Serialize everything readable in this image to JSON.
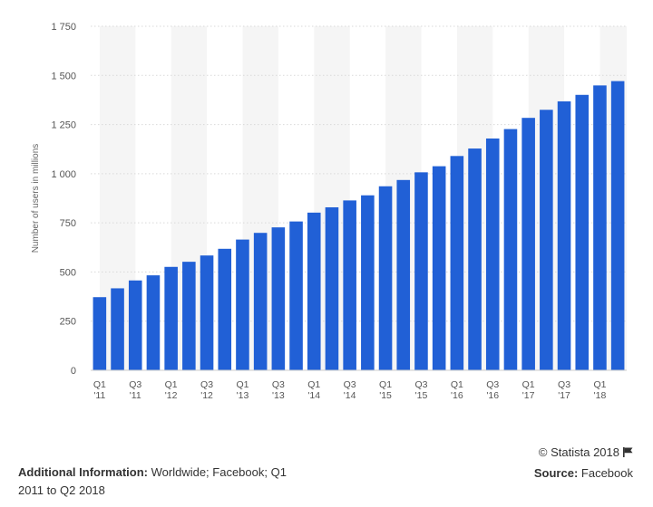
{
  "chart_data": {
    "type": "bar",
    "title": "",
    "xlabel": "",
    "ylabel": "Number of users in millions",
    "ylim": [
      0,
      1750
    ],
    "yticks": [
      0,
      250,
      500,
      750,
      1000,
      1250,
      1500,
      1750
    ],
    "ytick_labels": [
      "0",
      "250",
      "500",
      "750",
      "1 000",
      "1 250",
      "1 500",
      "1 750"
    ],
    "categories": [
      "Q1 '11",
      "Q2 '11",
      "Q3 '11",
      "Q4 '11",
      "Q1 '12",
      "Q2 '12",
      "Q3 '12",
      "Q4 '12",
      "Q1 '13",
      "Q2 '13",
      "Q3 '13",
      "Q4 '13",
      "Q1 '14",
      "Q2 '14",
      "Q3 '14",
      "Q4 '14",
      "Q1 '15",
      "Q2 '15",
      "Q3 '15",
      "Q4 '15",
      "Q1 '16",
      "Q2 '16",
      "Q3 '16",
      "Q4 '16",
      "Q1 '17",
      "Q2 '17",
      "Q3 '17",
      "Q4 '17",
      "Q1 '18",
      "Q2 '18"
    ],
    "values": [
      372,
      417,
      457,
      483,
      526,
      552,
      584,
      618,
      665,
      699,
      727,
      757,
      802,
      829,
      864,
      890,
      936,
      968,
      1007,
      1038,
      1090,
      1128,
      1179,
      1227,
      1284,
      1325,
      1368,
      1401,
      1449,
      1471
    ],
    "x_tick_labels": [
      {
        "index": 0,
        "q": "Q1",
        "y": "'11"
      },
      {
        "index": 2,
        "q": "Q3",
        "y": "'11"
      },
      {
        "index": 4,
        "q": "Q1",
        "y": "'12"
      },
      {
        "index": 6,
        "q": "Q3",
        "y": "'12"
      },
      {
        "index": 8,
        "q": "Q1",
        "y": "'13"
      },
      {
        "index": 10,
        "q": "Q3",
        "y": "'13"
      },
      {
        "index": 12,
        "q": "Q1",
        "y": "'14"
      },
      {
        "index": 14,
        "q": "Q3",
        "y": "'14"
      },
      {
        "index": 16,
        "q": "Q1",
        "y": "'15"
      },
      {
        "index": 18,
        "q": "Q3",
        "y": "'15"
      },
      {
        "index": 20,
        "q": "Q1",
        "y": "'16"
      },
      {
        "index": 22,
        "q": "Q3",
        "y": "'16"
      },
      {
        "index": 24,
        "q": "Q1",
        "y": "'17"
      },
      {
        "index": 26,
        "q": "Q3",
        "y": "'17"
      },
      {
        "index": 28,
        "q": "Q1",
        "y": "'18"
      }
    ],
    "grid": true,
    "bar_color": "#2160d6"
  },
  "footer": {
    "copyright": "© Statista 2018",
    "additional_label": "Additional Information:",
    "additional_text": "Worldwide; Facebook; Q1 2011 to Q2 2018",
    "source_label": "Source:",
    "source_text": "Facebook"
  }
}
